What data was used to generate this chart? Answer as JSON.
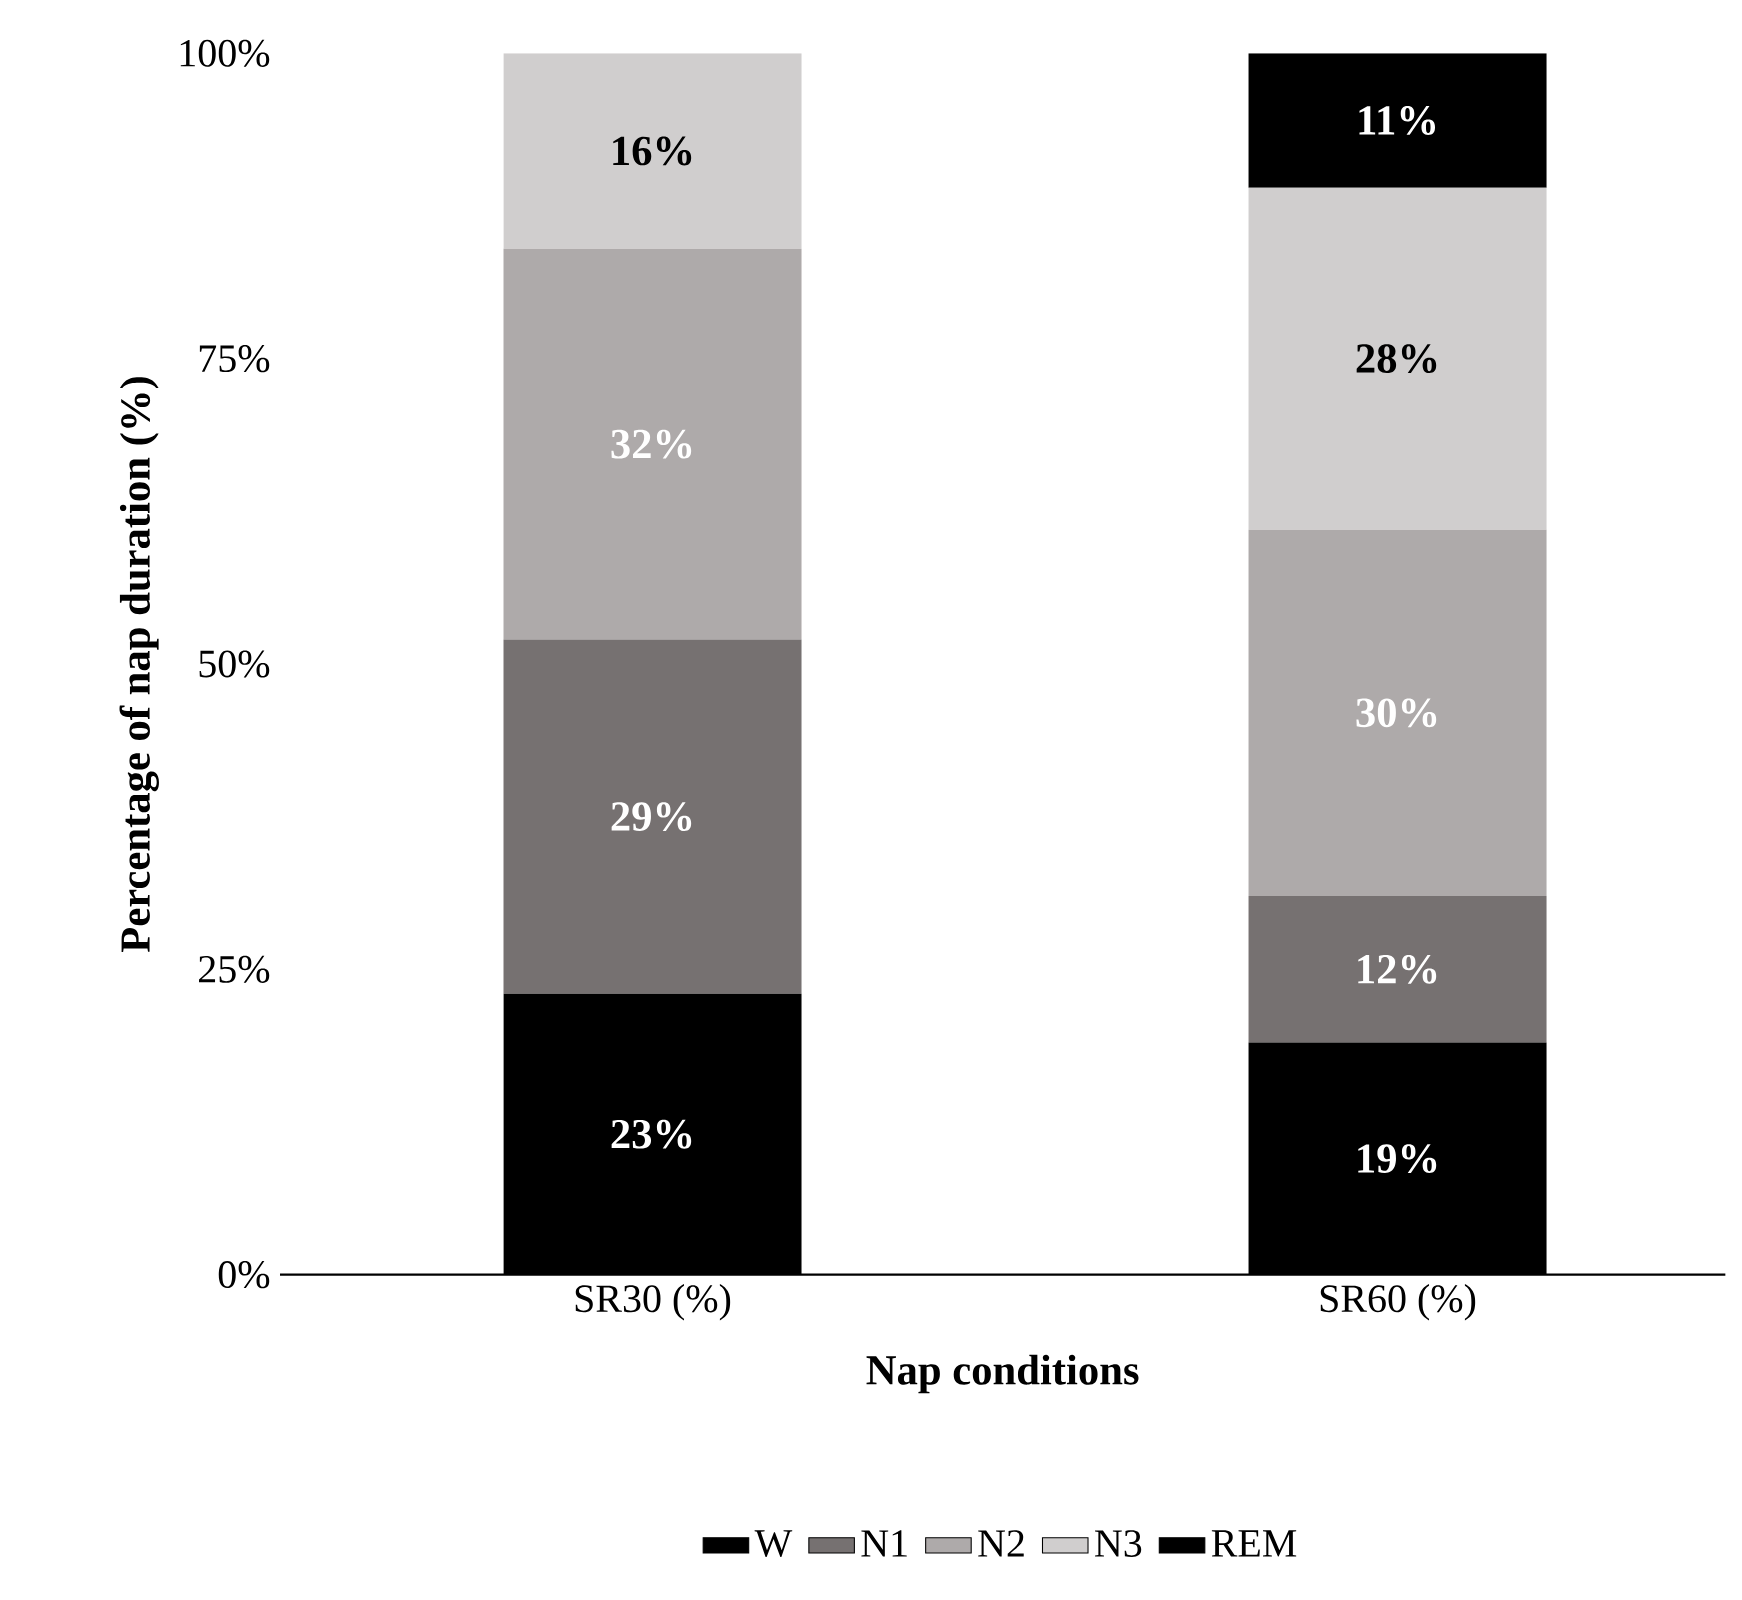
{
  "chart_data": {
    "type": "bar",
    "stacked": true,
    "xlabel": "Nap conditions",
    "ylabel": "Percentage of nap duration (%)",
    "categories": [
      "SR30 (%)",
      "SR60 (%)"
    ],
    "series": [
      {
        "name": "W",
        "color": "#000000",
        "values": [
          23,
          19
        ],
        "value_labels": [
          "23%",
          "19%"
        ]
      },
      {
        "name": "N1",
        "color": "#767171",
        "values": [
          29,
          12
        ],
        "value_labels": [
          "29%",
          "12%"
        ]
      },
      {
        "name": "N2",
        "color": "#aeaaaa",
        "values": [
          32,
          30
        ],
        "value_labels": [
          "32%",
          "30%"
        ]
      },
      {
        "name": "N3",
        "color": "#d0cece",
        "values": [
          16,
          28
        ],
        "value_labels": [
          "16%",
          "28%"
        ]
      },
      {
        "name": "REM",
        "color": "#000000",
        "values": [
          0,
          11
        ],
        "value_labels": [
          null,
          "11%"
        ]
      }
    ],
    "ylim": [
      0,
      100
    ],
    "yticks": [
      {
        "value": 0,
        "label": "0%"
      },
      {
        "value": 25,
        "label": "25%"
      },
      {
        "value": 50,
        "label": "50%"
      },
      {
        "value": 75,
        "label": "75%"
      },
      {
        "value": 100,
        "label": "100%"
      }
    ],
    "grid": false,
    "legend": "bottom"
  }
}
